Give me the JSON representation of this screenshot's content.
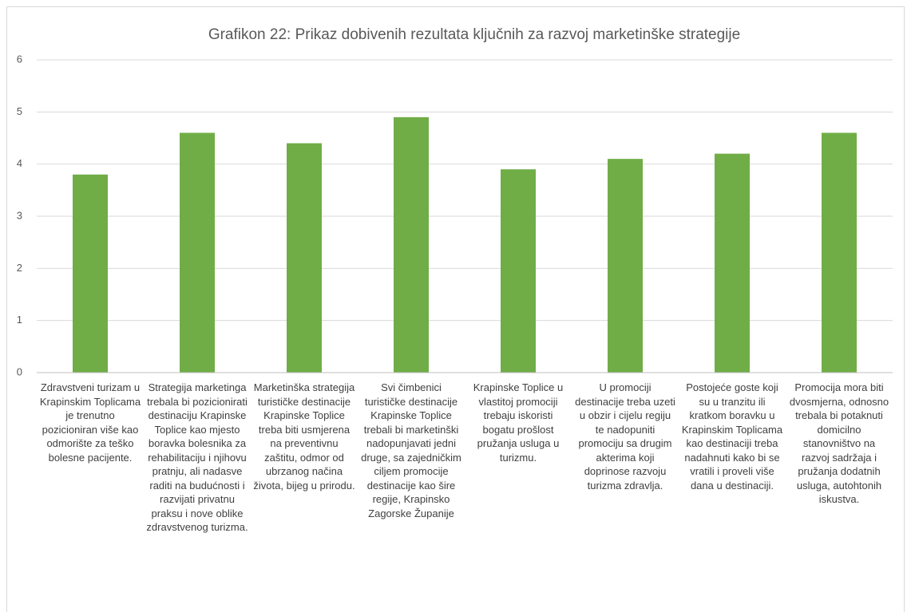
{
  "chart_data": {
    "type": "bar",
    "title": "Grafikon 22: Prikaz dobivenih rezultata ključnih za razvoj marketinške strategije",
    "categories": [
      "Zdravstveni turizam u Krapinskim Toplicama je trenutno pozicioniran više kao odmorište za teško bolesne pacijente.",
      "Strategija marketinga trebala bi pozicionirati destinaciju Krapinske Toplice kao mjesto boravka bolesnika za rehabilitaciju i njihovu pratnju, ali nadasve raditi na budućnosti i razvijati privatnu praksu i nove oblike zdravstvenog turizma.",
      "Marketinška strategija turističke destinacije Krapinske Toplice treba biti usmjerena na preventivnu zaštitu, odmor od ubrzanog načina života, bijeg u prirodu.",
      "Svi čimbenici turističke destinacije Krapinske Toplice trebali bi marketinški nadopunjavati jedni druge, sa zajedničkim ciljem promocije destinacije kao šire regije, Krapinsko Zagorske Županije",
      "Krapinske Toplice u vlastitoj promociji trebaju iskoristi bogatu prošlost pružanja usluga u turizmu.",
      "U promociji destinacije treba uzeti u obzir i cijelu regiju te nadopuniti promociju sa drugim akterima koji doprinose razvoju turizma zdravlja.",
      "Postojeće goste koji su u tranzitu ili kratkom boravku u Krapinskim Toplicama kao destinaciji treba nadahnuti kako bi se vratili i proveli više dana u destinaciji.",
      "Promocija mora biti dvosmjerna, odnosno trebala bi potaknuti domicilno stanovništvo na razvoj sadržaja i pružanja dodatnih usluga, autohtonih iskustva."
    ],
    "values": [
      3.8,
      4.6,
      4.4,
      4.9,
      3.9,
      4.1,
      4.2,
      4.6
    ],
    "color": "#70ad47",
    "ylim": [
      0,
      6
    ],
    "yticks": [
      0,
      1,
      2,
      3,
      4,
      5,
      6
    ],
    "grid": true
  }
}
